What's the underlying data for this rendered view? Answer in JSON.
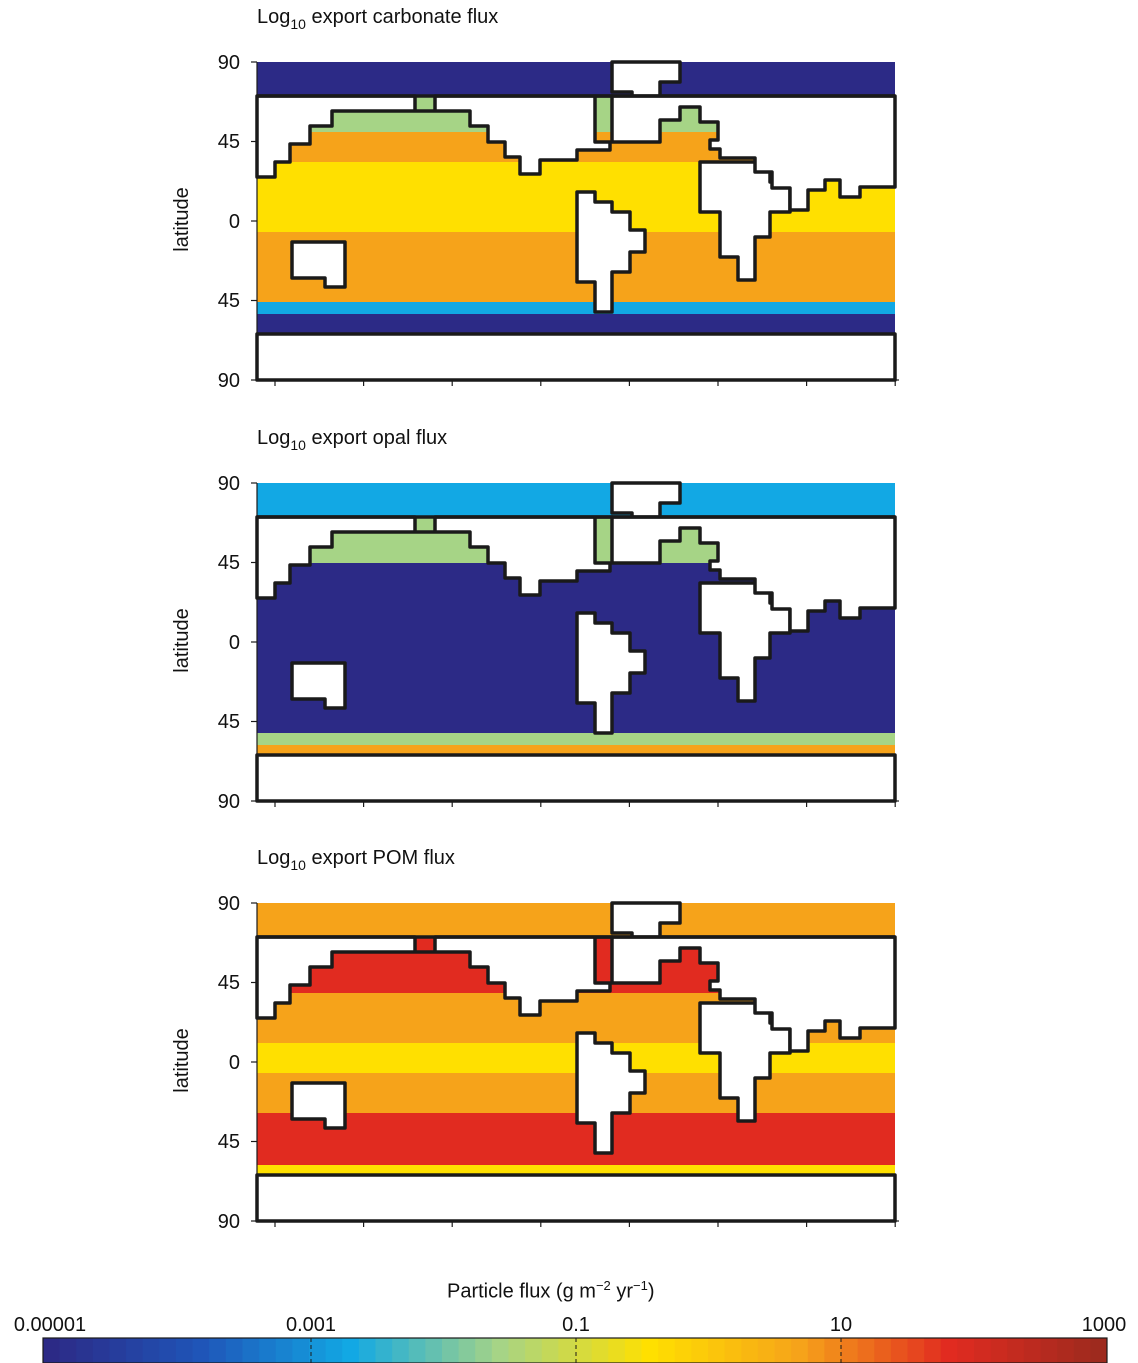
{
  "panels": [
    {
      "title_prefix": "Log",
      "title_sub": "10",
      "title_rest": " export carbonate flux",
      "ylabel": "latitude",
      "yticks": [
        "90",
        "45",
        "0",
        "45",
        "90"
      ]
    },
    {
      "title_prefix": "Log",
      "title_sub": "10",
      "title_rest": " export opal flux",
      "ylabel": "latitude",
      "yticks": [
        "90",
        "45",
        "0",
        "45",
        "90"
      ]
    },
    {
      "title_prefix": "Log",
      "title_sub": "10",
      "title_rest": " export POM flux",
      "ylabel": "latitude",
      "yticks": [
        "90",
        "45",
        "0",
        "45",
        "90"
      ]
    }
  ],
  "colorbar": {
    "title_main": "Particle flux   (g m",
    "title_exp1": "−2",
    "title_mid": " yr",
    "title_exp2": "−1",
    "title_end": ")",
    "tick_labels": [
      "0.00001",
      "0.001",
      "0.1",
      "10",
      "1000"
    ],
    "colors": [
      "#2c2a86",
      "#1f55b8",
      "#12a8e4",
      "#a6d486",
      "#ffe000",
      "#f6a31a",
      "#e12b20",
      "#9e2a1e"
    ]
  },
  "chart_data": [
    {
      "type": "heatmap",
      "title": "Log10 export carbonate flux",
      "ylabel": "latitude",
      "ylim": [
        -90,
        90
      ],
      "yticks": [
        90,
        45,
        0,
        -45,
        -90
      ],
      "scale": "log10",
      "units": "g m-2 yr-1",
      "regions": {
        "arctic": 1e-05,
        "north_pacific_subpolar": 0.01,
        "subtropical_pacific": 1.5,
        "equatorial_pacific": 0.6,
        "atlantic": 4,
        "north_atlantic": 150,
        "indian": 3,
        "southern_ocean_band": 0.01,
        "southern_ocean": 1e-05
      }
    },
    {
      "type": "heatmap",
      "title": "Log10 export opal flux",
      "ylabel": "latitude",
      "ylim": [
        -90,
        90
      ],
      "yticks": [
        90,
        45,
        0,
        -45,
        -90
      ],
      "scale": "log10",
      "units": "g m-2 yr-1",
      "regions": {
        "arctic": 0.003,
        "north_pacific_subpolar": 0.05,
        "global_ocean": 1e-05,
        "southern_ocean_band": 0.01,
        "southern_ocean": 1.5
      }
    },
    {
      "type": "heatmap",
      "title": "Log10 export POM flux",
      "ylabel": "latitude",
      "ylim": [
        -90,
        90
      ],
      "yticks": [
        90,
        45,
        0,
        -45,
        -90
      ],
      "scale": "log10",
      "units": "g m-2 yr-1",
      "regions": {
        "arctic": 3,
        "north_pacific_subpolar": 50,
        "subtropical_pacific": 2,
        "equatorial_pacific": 0.8,
        "atlantic": 5,
        "north_atlantic": 80,
        "indian": 3,
        "southern_ocean_band": 60,
        "southern_ocean": 1
      }
    },
    {
      "type": "colorbar",
      "title": "Particle flux (g m-2 yr-1)",
      "scale": "log10",
      "range": [
        1e-05,
        1000
      ],
      "ticks": [
        1e-05,
        0.001,
        0.1,
        10,
        1000
      ]
    }
  ]
}
